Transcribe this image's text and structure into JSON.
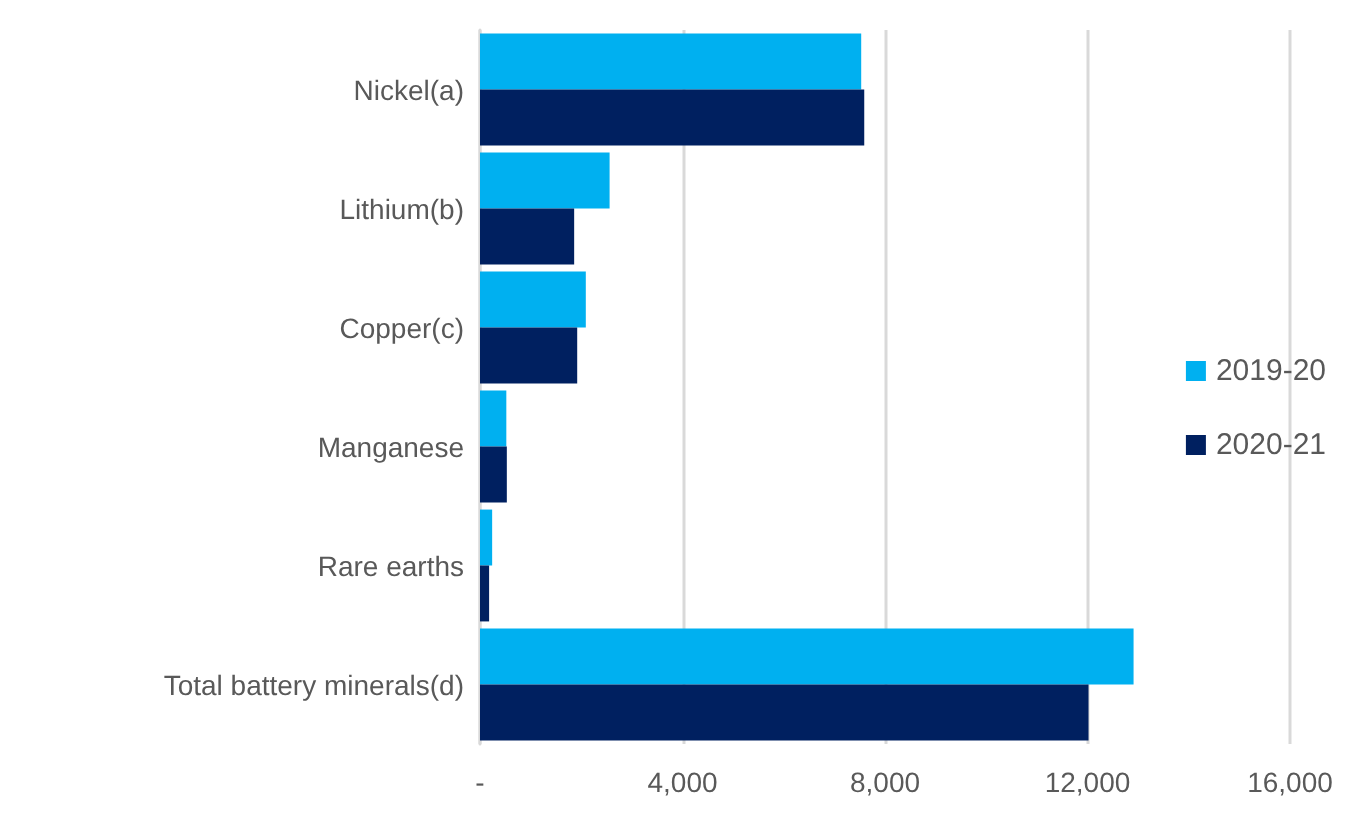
{
  "chart_data": {
    "type": "bar",
    "orientation": "horizontal",
    "categories": [
      "Nickel(a)",
      "Lithium(b)",
      "Copper(c)",
      "Manganese",
      "Rare earths",
      "Total battery minerals(d)"
    ],
    "series": [
      {
        "name": "2019-20",
        "color": "#00b0f0",
        "values": [
          7530,
          2560,
          2090,
          520,
          240,
          12910
        ]
      },
      {
        "name": "2020-21",
        "color": "#002060",
        "values": [
          7590,
          1860,
          1920,
          530,
          180,
          12020
        ]
      }
    ],
    "xlim": [
      0,
      16000
    ],
    "xticks": [
      {
        "value": 0,
        "label": "-"
      },
      {
        "value": 4000,
        "label": "4,000"
      },
      {
        "value": 8000,
        "label": "8,000"
      },
      {
        "value": 12000,
        "label": "12,000"
      },
      {
        "value": 16000,
        "label": "16,000"
      }
    ],
    "grid": "x",
    "legend": "right"
  }
}
